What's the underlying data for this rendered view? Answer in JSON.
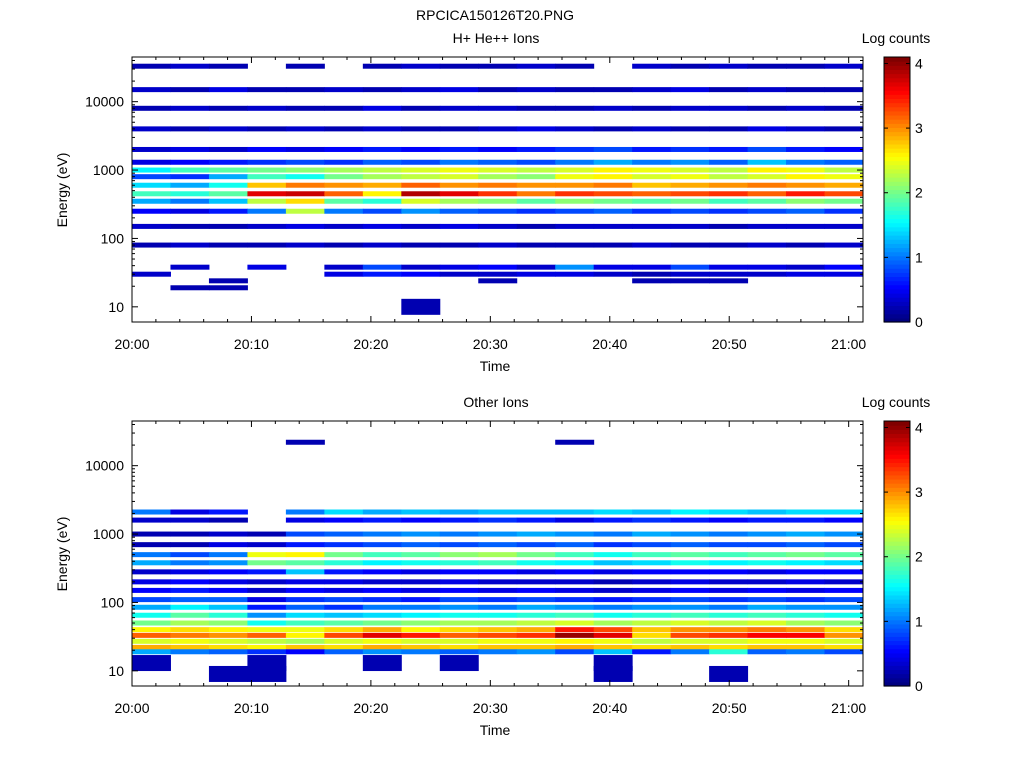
{
  "page": {
    "title": "RPCICA150126T20.PNG"
  },
  "colorbar": {
    "label": "Log counts",
    "ticks": [
      "0",
      "1",
      "2",
      "3",
      "4"
    ],
    "range": [
      0,
      4.1
    ],
    "colormap": "jet"
  },
  "chart_data": [
    {
      "type": "heatmap",
      "title": "H+ He++ Ions",
      "xlabel": "Time",
      "ylabel": "Energy (eV)",
      "y_scale": "log",
      "ylim": [
        6,
        45000
      ],
      "x_ticks": [
        "20:00",
        "20:10",
        "20:20",
        "20:30",
        "20:40",
        "20:50",
        "21:00"
      ],
      "y_ticks": [
        "10",
        "100",
        "1000",
        "10000"
      ],
      "time_bins": [
        "20:00",
        "20:03",
        "20:06",
        "20:10",
        "20:13",
        "20:16",
        "20:19",
        "20:22",
        "20:25",
        "20:28",
        "20:32",
        "20:35",
        "20:38",
        "20:41",
        "20:44",
        "20:47",
        "20:51",
        "20:54",
        "20:57"
      ],
      "bands": [
        {
          "energy": 33000,
          "values": [
            0.2,
            0.3,
            0.2,
            0,
            0.2,
            0,
            0.2,
            0.3,
            0.2,
            0.2,
            0.3,
            0.2,
            0,
            0.3,
            0.2,
            0.3,
            0.2,
            0.2,
            0.3
          ]
        },
        {
          "energy": 15000,
          "values": [
            0.3,
            0.2,
            0.4,
            0.2,
            0.2,
            0.3,
            0.2,
            0.3,
            0.4,
            0.2,
            0.3,
            0.2,
            0.2,
            0.3,
            0.4,
            0.2,
            0.3,
            0.2,
            0.2
          ]
        },
        {
          "energy": 8000,
          "values": [
            0.2,
            0.3,
            0.2,
            0.3,
            0.2,
            0.2,
            0.4,
            0.2,
            0.3,
            0.3,
            0.2,
            0.2,
            0.3,
            0.2,
            0.3,
            0.3,
            0.2,
            0.3,
            0.2
          ]
        },
        {
          "energy": 4000,
          "values": [
            0.3,
            0.2,
            0.3,
            0.2,
            0.3,
            0.2,
            0.3,
            0.2,
            0.2,
            0.3,
            0.4,
            0.3,
            0.2,
            0.3,
            0.2,
            0.2,
            0.4,
            0.3,
            0.2
          ]
        },
        {
          "energy": 2000,
          "values": [
            0.3,
            0.4,
            0.3,
            0.5,
            0.4,
            0.5,
            0.6,
            0.5,
            0.6,
            0.5,
            0.6,
            0.7,
            0.8,
            0.6,
            0.7,
            0.6,
            0.8,
            0.6,
            0.5
          ]
        },
        {
          "energy": 1300,
          "values": [
            0.4,
            0.5,
            0.6,
            0.7,
            0.8,
            0.7,
            0.9,
            0.8,
            1.0,
            0.9,
            0.8,
            1.0,
            1.2,
            1.0,
            1.1,
            0.9,
            1.3,
            1.0,
            0.9
          ]
        },
        {
          "energy": 1000,
          "values": [
            1.5,
            1.8,
            1.9,
            2.0,
            2.1,
            2.2,
            2.3,
            2.4,
            2.5,
            2.4,
            2.3,
            2.4,
            2.6,
            2.5,
            2.4,
            2.3,
            2.6,
            2.5,
            2.3
          ]
        },
        {
          "energy": 800,
          "values": [
            0.8,
            0.7,
            1.2,
            1.8,
            1.6,
            2.0,
            2.2,
            2.3,
            2.4,
            2.2,
            2.1,
            2.5,
            2.6,
            2.4,
            2.5,
            2.3,
            2.4,
            2.6,
            2.5
          ]
        },
        {
          "energy": 600,
          "values": [
            1.4,
            1.2,
            1.6,
            2.8,
            3.1,
            3.0,
            2.9,
            3.2,
            3.0,
            3.1,
            3.0,
            3.0,
            3.1,
            2.8,
            2.9,
            3.0,
            3.1,
            3.0,
            2.9
          ]
        },
        {
          "energy": 450,
          "values": [
            1.8,
            1.7,
            1.9,
            3.7,
            3.8,
            3.2,
            2.6,
            3.9,
            3.7,
            3.4,
            3.1,
            3.4,
            3.3,
            3.2,
            3.3,
            3.4,
            3.2,
            3.5,
            3.3
          ]
        },
        {
          "energy": 350,
          "values": [
            1.2,
            1.0,
            1.3,
            2.3,
            2.7,
            1.9,
            1.7,
            2.4,
            2.2,
            2.1,
            1.9,
            2.1,
            2.0,
            1.9,
            2.0,
            1.8,
            1.9,
            2.1,
            2.0
          ]
        },
        {
          "energy": 250,
          "values": [
            0.5,
            0.4,
            0.6,
            1.0,
            2.3,
            1.0,
            0.8,
            1.1,
            0.9,
            0.8,
            0.7,
            0.8,
            0.9,
            0.7,
            0.8,
            0.7,
            0.8,
            0.9,
            0.7
          ]
        },
        {
          "energy": 150,
          "values": [
            0.3,
            0.2,
            0.2,
            0.3,
            0.4,
            0.3,
            0.4,
            0.3,
            0.4,
            0.3,
            0.2,
            0.3,
            0.3,
            0.3,
            0.3,
            0.2,
            0.3,
            0.3,
            0.3
          ]
        },
        {
          "energy": 80,
          "values": [
            0.2,
            0.3,
            0.2,
            0.2,
            0.3,
            0.2,
            0.3,
            0.2,
            0.2,
            0.3,
            0.2,
            0.2,
            0.2,
            0.3,
            0.2,
            0.2,
            0.3,
            0.2,
            0.3
          ]
        },
        {
          "energy": 38,
          "values": [
            0,
            0.3,
            0,
            0.4,
            0,
            0.3,
            0.8,
            0.3,
            0.4,
            0.5,
            0.3,
            1.1,
            0.4,
            0.4,
            0.8,
            0.4,
            0.4,
            0.3,
            0.5
          ]
        },
        {
          "energy": 30,
          "values": [
            0.3,
            0,
            0,
            0,
            0,
            0.4,
            0.6,
            0.5,
            0.3,
            0.3,
            0.4,
            0.4,
            0.3,
            0.2,
            0.3,
            0.3,
            0.3,
            0.4,
            0.4
          ]
        },
        {
          "energy": 24,
          "values": [
            0,
            0,
            0.2,
            0,
            0,
            0,
            0,
            0,
            0,
            0.2,
            0,
            0,
            0,
            0.2,
            0.2,
            0.2,
            0,
            0,
            0
          ]
        },
        {
          "energy": 19,
          "values": [
            0,
            0.2,
            0.2,
            0,
            0,
            0,
            0,
            0,
            0,
            0,
            0,
            0,
            0,
            0,
            0,
            0,
            0,
            0,
            0
          ]
        },
        {
          "energy": 10,
          "values": [
            0,
            0,
            0,
            0,
            0,
            0,
            0,
            0.2,
            0,
            0,
            0,
            0,
            0,
            0,
            0,
            0,
            0,
            0,
            0
          ]
        }
      ]
    },
    {
      "type": "heatmap",
      "title": "Other Ions",
      "xlabel": "Time",
      "ylabel": "Energy (eV)",
      "y_scale": "log",
      "ylim": [
        6,
        45000
      ],
      "x_ticks": [
        "20:00",
        "20:10",
        "20:20",
        "20:30",
        "20:40",
        "20:50",
        "21:00"
      ],
      "y_ticks": [
        "10",
        "100",
        "1000",
        "10000"
      ],
      "time_bins": [
        "20:00",
        "20:03",
        "20:06",
        "20:10",
        "20:13",
        "20:16",
        "20:19",
        "20:22",
        "20:25",
        "20:28",
        "20:32",
        "20:35",
        "20:38",
        "20:41",
        "20:44",
        "20:47",
        "20:51",
        "20:54",
        "20:57"
      ],
      "bands": [
        {
          "energy": 22000,
          "values": [
            0,
            0,
            0,
            0,
            0.2,
            0,
            0,
            0,
            0,
            0,
            0,
            0.2,
            0,
            0,
            0,
            0,
            0,
            0,
            0
          ]
        },
        {
          "energy": 2100,
          "values": [
            1.0,
            0.4,
            0.6,
            0,
            1.0,
            1.4,
            1.2,
            1.3,
            1.2,
            1.3,
            1.3,
            1.3,
            1.4,
            1.3,
            1.5,
            1.4,
            1.3,
            1.4,
            1.4
          ]
        },
        {
          "energy": 1600,
          "values": [
            0.3,
            0.3,
            0.2,
            0,
            0.4,
            0.5,
            0.6,
            0.5,
            0.6,
            0.7,
            0.6,
            0.4,
            0.6,
            0.7,
            0.6,
            0.5,
            0.6,
            0.6,
            0.5
          ]
        },
        {
          "energy": 1000,
          "values": [
            0.2,
            0.2,
            0.3,
            0.2,
            0.8,
            0.9,
            1.0,
            1.1,
            1.0,
            1.1,
            1.2,
            1.1,
            1.0,
            1.2,
            1.1,
            1.0,
            1.1,
            1.2,
            1.1
          ]
        },
        {
          "energy": 700,
          "values": [
            0.2,
            0.2,
            0.4,
            0.3,
            0.6,
            0.7,
            0.8,
            0.9,
            0.8,
            0.9,
            0.8,
            0.9,
            0.7,
            0.8,
            0.9,
            0.8,
            0.8,
            0.9,
            0.8
          ]
        },
        {
          "energy": 500,
          "values": [
            1.0,
            0.8,
            1.0,
            2.5,
            2.6,
            2.0,
            1.8,
            1.9,
            2.1,
            2.2,
            2.0,
            1.8,
            1.6,
            1.8,
            1.9,
            1.8,
            1.9,
            2.0,
            1.9
          ]
        },
        {
          "energy": 380,
          "values": [
            1.2,
            1.0,
            1.1,
            2.0,
            1.9,
            1.7,
            1.5,
            1.6,
            1.7,
            1.8,
            1.6,
            1.5,
            1.3,
            1.4,
            1.6,
            1.5,
            1.6,
            1.5,
            1.4
          ]
        },
        {
          "energy": 280,
          "values": [
            0.3,
            0.4,
            0.5,
            0.6,
            1.3,
            0.6,
            0.5,
            0.4,
            0.5,
            0.5,
            0.4,
            0.5,
            0.4,
            0.5,
            0.5,
            0.5,
            0.4,
            0.5,
            0.5
          ]
        },
        {
          "energy": 200,
          "values": [
            0.4,
            0.5,
            0.4,
            0.3,
            0.4,
            0.4,
            0.3,
            0.3,
            0.4,
            0.3,
            0.3,
            0.3,
            0.2,
            0.3,
            0.4,
            0.3,
            0.3,
            0.4,
            0.3
          ]
        },
        {
          "energy": 150,
          "values": [
            0.5,
            0.6,
            0.5,
            0.3,
            0.5,
            0.4,
            0.5,
            0.4,
            0.5,
            0.4,
            0.5,
            0.4,
            0.3,
            0.4,
            0.5,
            0.4,
            0.5,
            0.4,
            0.5
          ]
        },
        {
          "energy": 110,
          "values": [
            0.8,
            0.9,
            0.9,
            0.4,
            0.7,
            0.8,
            0.7,
            0.6,
            0.8,
            0.7,
            0.8,
            0.7,
            0.6,
            0.7,
            0.8,
            0.7,
            0.8,
            0.7,
            0.8
          ]
        },
        {
          "energy": 85,
          "values": [
            1.2,
            1.5,
            1.3,
            0.6,
            0.9,
            0.7,
            1.0,
            1.0,
            1.1,
            1.0,
            1.2,
            1.1,
            1.0,
            1.1,
            1.1,
            1.0,
            1.2,
            1.1,
            1.1
          ]
        },
        {
          "energy": 65,
          "values": [
            1.6,
            1.9,
            1.7,
            1.1,
            1.4,
            1.3,
            1.4,
            1.5,
            1.6,
            1.6,
            1.7,
            1.8,
            1.6,
            1.7,
            1.8,
            1.7,
            1.8,
            1.7,
            1.6
          ]
        },
        {
          "energy": 50,
          "values": [
            2.0,
            2.2,
            2.1,
            1.6,
            1.8,
            1.9,
            2.0,
            2.1,
            2.2,
            2.2,
            2.3,
            2.4,
            2.2,
            2.3,
            2.4,
            2.3,
            2.4,
            2.2,
            2.1
          ]
        },
        {
          "energy": 40,
          "values": [
            2.6,
            2.7,
            2.6,
            2.5,
            2.5,
            2.7,
            2.9,
            2.6,
            2.7,
            2.8,
            2.9,
            3.5,
            3.3,
            2.8,
            3.0,
            3.0,
            3.1,
            3.0,
            2.7
          ]
        },
        {
          "energy": 33,
          "values": [
            3.2,
            3.1,
            3.0,
            3.2,
            2.6,
            3.3,
            3.7,
            3.5,
            3.2,
            3.3,
            3.4,
            4.0,
            3.7,
            2.7,
            3.3,
            3.4,
            3.6,
            3.6,
            3.0
          ]
        },
        {
          "energy": 27,
          "values": [
            2.4,
            2.5,
            2.4,
            2.3,
            2.2,
            2.4,
            2.5,
            2.4,
            2.4,
            2.5,
            2.5,
            2.6,
            2.5,
            2.3,
            2.4,
            2.4,
            2.5,
            2.5,
            2.4
          ]
        },
        {
          "energy": 22,
          "values": [
            2.9,
            2.8,
            2.7,
            2.6,
            2.8,
            2.7,
            2.9,
            2.8,
            2.7,
            2.8,
            2.8,
            2.9,
            2.8,
            2.7,
            2.8,
            2.7,
            2.8,
            2.8,
            2.7
          ]
        },
        {
          "energy": 19,
          "values": [
            1.2,
            1.0,
            0.9,
            0.7,
            0.5,
            0.9,
            1.1,
            1.0,
            0.9,
            1.0,
            1.1,
            0.8,
            1.3,
            0.6,
            1.0,
            1.7,
            0.9,
            1.0,
            0.8
          ]
        },
        {
          "energy": 13,
          "values": [
            0.2,
            0,
            0,
            0.2,
            0,
            0,
            0.2,
            0,
            0.2,
            0,
            0,
            0,
            0.2,
            0,
            0,
            0,
            0,
            0,
            0
          ]
        },
        {
          "energy": 9,
          "values": [
            0,
            0,
            0.2,
            0.2,
            0,
            0,
            0,
            0,
            0,
            0,
            0,
            0,
            0.2,
            0,
            0,
            0.2,
            0,
            0,
            0
          ]
        }
      ]
    }
  ]
}
